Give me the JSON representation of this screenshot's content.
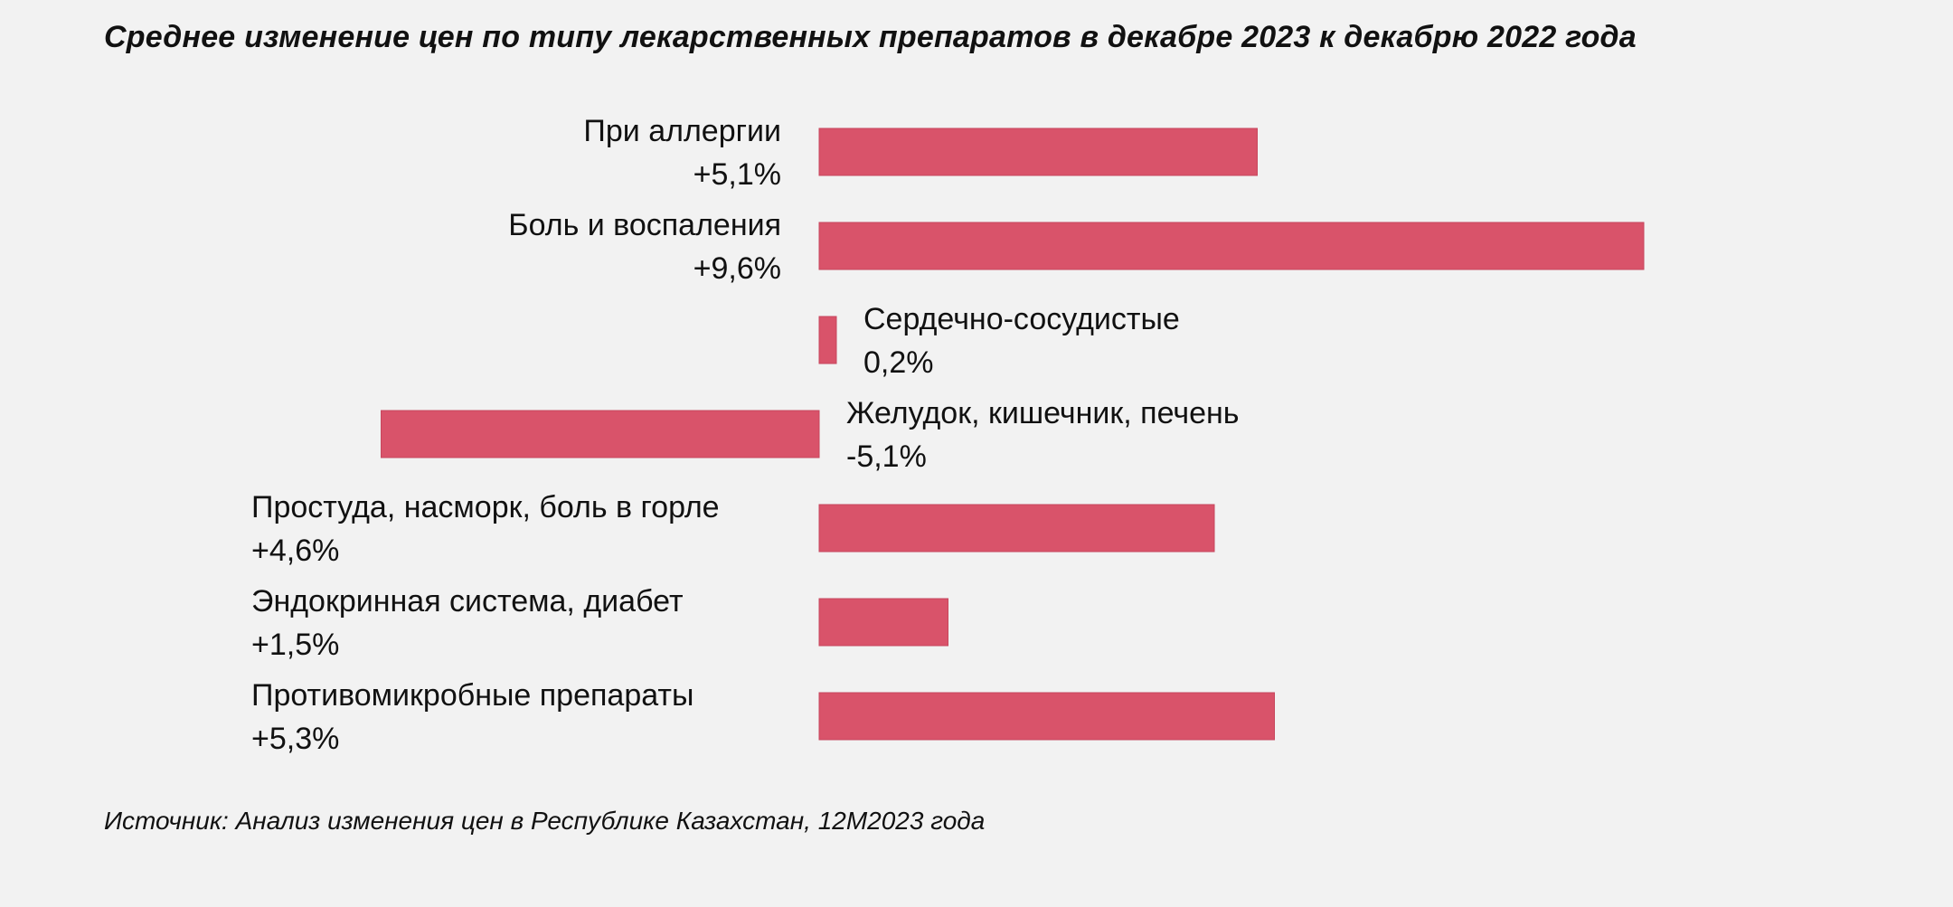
{
  "chart_data": {
    "type": "bar",
    "orientation": "horizontal",
    "title": "Среднее изменение цен по типу лекарственных препаратов в декабре 2023 к декабрю 2022 года",
    "categories": [
      "При аллергии",
      "Боль и воспаления",
      "Сердечно-сосудистые",
      "Желудок, кишечник, печень",
      "Простуда, насморк, боль в горле",
      "Эндокринная система, диабет",
      "Противомикробные препараты"
    ],
    "values": [
      5.1,
      9.6,
      0.2,
      -5.1,
      4.6,
      1.5,
      5.3
    ],
    "value_labels": [
      "+5,1%",
      "+9,6%",
      "0,2%",
      "-5,1%",
      "+4,6%",
      "+1,5%",
      "+5,3%"
    ],
    "unit": "%",
    "xlim": [
      -5.1,
      9.6
    ],
    "bar_color": "#d9536a",
    "grid": false,
    "legend": "none"
  },
  "source": "Источник: Анализ изменения цен в Республике Казахстан, 12М2023 года"
}
